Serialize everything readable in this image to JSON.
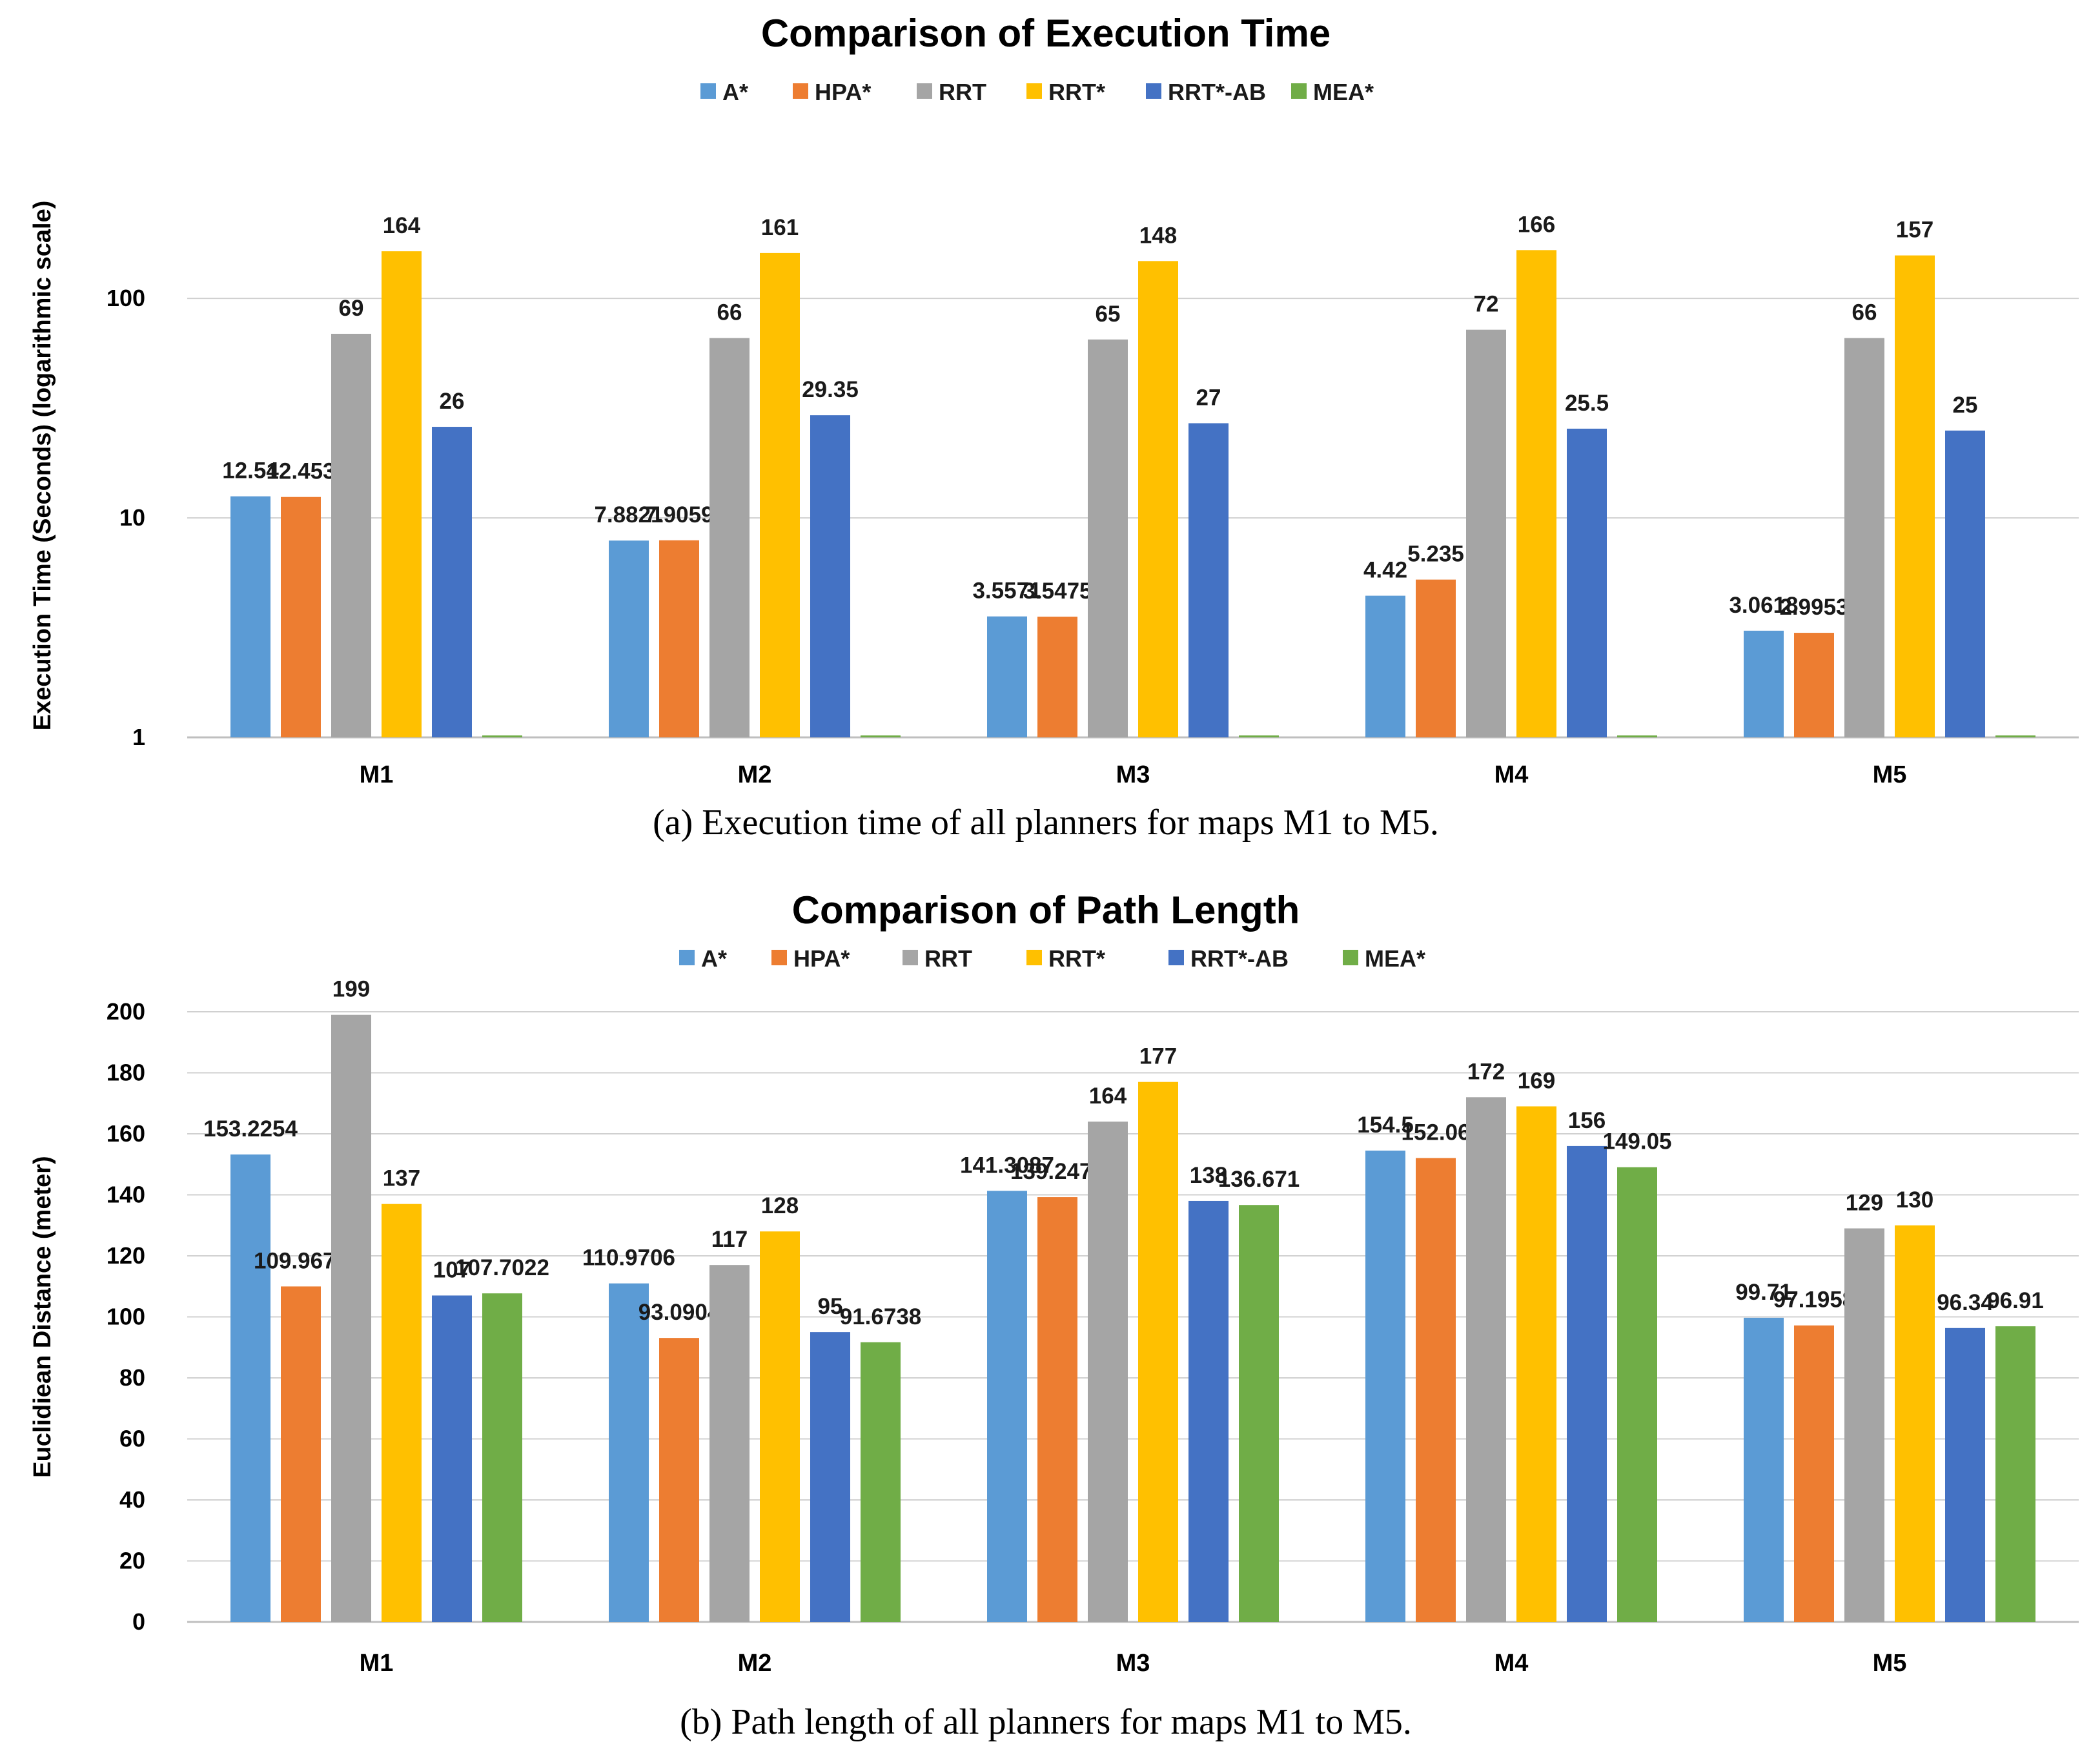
{
  "colors": {
    "A*": "#5b9bd5",
    "HPA*": "#ed7d31",
    "RRT": "#a5a5a5",
    "RRT*": "#ffc000",
    "RRT*-AB": "#4472c4",
    "MEA*": "#70ad47"
  },
  "chart_data": [
    {
      "type": "bar",
      "title": "Comparison of Execution Time",
      "ylabel": "Execution Time (Seconds) (logarithmic  scale)",
      "xlabel": "",
      "yscale": "log",
      "ylim": [
        1,
        300
      ],
      "yticks": [
        1,
        10,
        100
      ],
      "legend": "top-center",
      "categories": [
        "M1",
        "M2",
        "M3",
        "M4",
        "M5"
      ],
      "series": [
        {
          "name": "A*",
          "values": [
            12.54,
            7.8821,
            3.5571,
            4.42,
            3.0618
          ],
          "labels": [
            "12.54",
            "7.8821",
            "3.5571",
            "4.42",
            "3.0618"
          ]
        },
        {
          "name": "HPA*",
          "values": [
            12.453,
            7.9059,
            3.5475,
            5.235,
            2.9953
          ],
          "labels": [
            "12.453",
            "7.9059",
            "3.5475",
            "5.235",
            "2.9953"
          ]
        },
        {
          "name": "RRT",
          "values": [
            69,
            66,
            65,
            72,
            66
          ],
          "labels": [
            "69",
            "66",
            "65",
            "72",
            "66"
          ]
        },
        {
          "name": "RRT*",
          "values": [
            164,
            161,
            148,
            166,
            157
          ],
          "labels": [
            "164",
            "161",
            "148",
            "166",
            "157"
          ]
        },
        {
          "name": "RRT*-AB",
          "values": [
            26,
            29.35,
            27,
            25.5,
            25
          ],
          "labels": [
            "26",
            "29.35",
            "27",
            "25.5",
            "25"
          ]
        },
        {
          "name": "MEA*",
          "values": [
            1,
            1,
            1,
            1,
            1
          ],
          "labels": [
            "",
            "",
            "",
            "",
            ""
          ]
        }
      ],
      "caption": "(a) Execution time of all planners for maps M1 to M5."
    },
    {
      "type": "bar",
      "title": "Comparison of Path Length",
      "ylabel": "Euclidiean Distance (meter)",
      "xlabel": "",
      "yscale": "linear",
      "ylim": [
        0,
        200
      ],
      "yticks": [
        0,
        20,
        40,
        60,
        80,
        100,
        120,
        140,
        160,
        180,
        200
      ],
      "legend": "top-center",
      "categories": [
        "M1",
        "M2",
        "M3",
        "M4",
        "M5"
      ],
      "series": [
        {
          "name": "A*",
          "values": [
            153.2254,
            110.9706,
            141.3087,
            154.5,
            99.71
          ],
          "labels": [
            "153.2254",
            "110.9706",
            "141.3087",
            "154.5",
            "99.71"
          ]
        },
        {
          "name": "HPA*",
          "values": [
            109.9675,
            93.0904,
            139.2477,
            152.06,
            97.1958
          ],
          "labels": [
            "109.9675",
            "93.0904",
            "139.2477",
            "152.06",
            "97.1958"
          ]
        },
        {
          "name": "RRT",
          "values": [
            199,
            117,
            164,
            172,
            129
          ],
          "labels": [
            "199",
            "117",
            "164",
            "172",
            "129"
          ]
        },
        {
          "name": "RRT*",
          "values": [
            137,
            128,
            177,
            169,
            130
          ],
          "labels": [
            "137",
            "128",
            "177",
            "169",
            "130"
          ]
        },
        {
          "name": "RRT*-AB",
          "values": [
            107,
            95,
            138,
            156,
            96.34
          ],
          "labels": [
            "107",
            "95",
            "138",
            "156",
            "96.34"
          ]
        },
        {
          "name": "MEA*",
          "values": [
            107.7022,
            91.6738,
            136.671,
            149.05,
            96.91
          ],
          "labels": [
            "107.7022",
            "91.6738",
            "136.671",
            "149.05",
            "96.91"
          ]
        }
      ],
      "caption": "(b) Path length of all planners for maps M1 to M5."
    }
  ]
}
